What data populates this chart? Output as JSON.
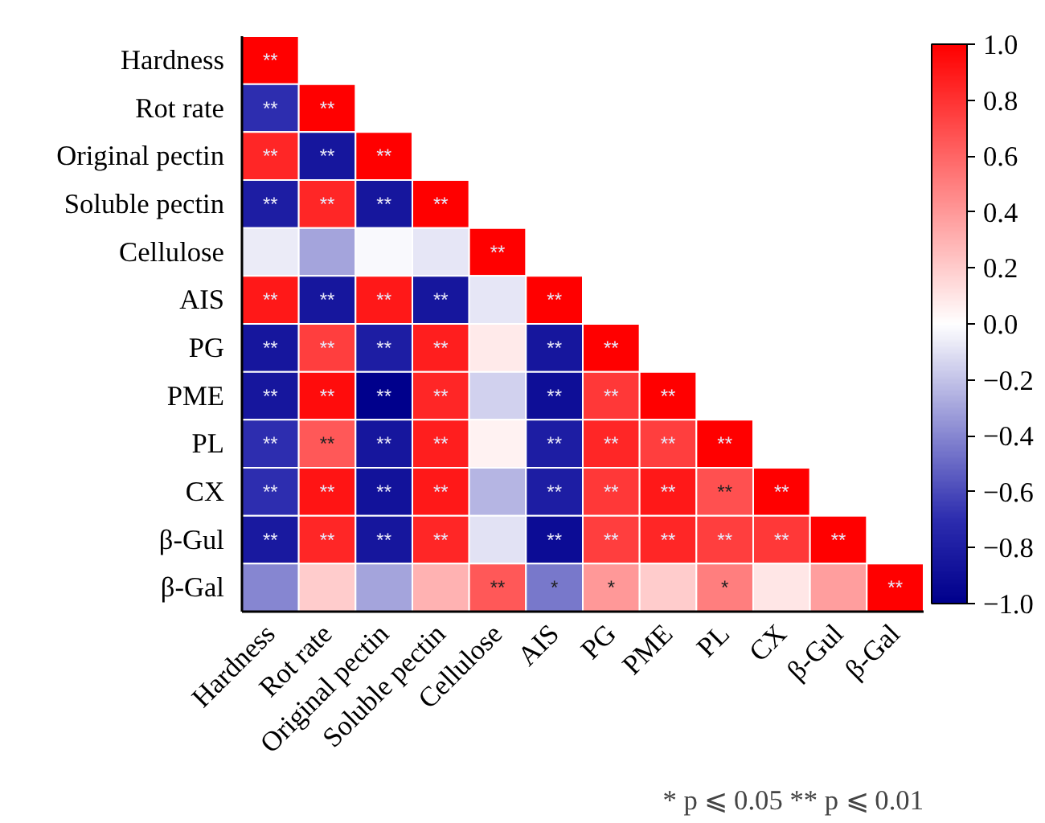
{
  "chart_data": {
    "type": "heatmap",
    "categories": [
      "Hardness",
      "Rot rate",
      "Original pectin",
      "Soluble pectin",
      "Cellulose",
      "AIS",
      "PG",
      "PME",
      "PL",
      "CX",
      "β-Gul",
      "β-Gal"
    ],
    "y_categories": [
      "Hardness",
      "Rot rate",
      "Original pectin",
      "Soluble pectin",
      "Cellulose",
      "AIS",
      "PG",
      "PME",
      "PL",
      "CX",
      "β-Gul",
      "β-Gal"
    ],
    "cells": [
      [
        1,
        null,
        null,
        null,
        null,
        null,
        null,
        null,
        null,
        null,
        null,
        null
      ],
      [
        -0.7,
        1,
        null,
        null,
        null,
        null,
        null,
        null,
        null,
        null,
        null,
        null
      ],
      [
        0.85,
        -0.85,
        1,
        null,
        null,
        null,
        null,
        null,
        null,
        null,
        null,
        null
      ],
      [
        -0.8,
        0.85,
        -0.85,
        1,
        null,
        null,
        null,
        null,
        null,
        null,
        null,
        null
      ],
      [
        -0.07,
        -0.3,
        -0.02,
        -0.08,
        1,
        null,
        null,
        null,
        null,
        null,
        null,
        null
      ],
      [
        0.9,
        -0.85,
        0.9,
        -0.85,
        -0.08,
        1,
        null,
        null,
        null,
        null,
        null,
        null
      ],
      [
        -0.85,
        0.75,
        -0.8,
        0.88,
        0.08,
        -0.85,
        1,
        null,
        null,
        null,
        null,
        null
      ],
      [
        -0.85,
        0.95,
        -1.0,
        0.85,
        -0.15,
        -0.9,
        0.78,
        1,
        null,
        null,
        null,
        null
      ],
      [
        -0.7,
        0.65,
        -0.85,
        0.88,
        0.05,
        -0.8,
        0.85,
        0.75,
        1,
        null,
        null,
        null
      ],
      [
        -0.7,
        0.92,
        -0.88,
        0.9,
        -0.25,
        -0.8,
        0.78,
        0.9,
        0.68,
        1,
        null,
        null
      ],
      [
        -0.83,
        0.85,
        -0.85,
        0.85,
        -0.1,
        -0.92,
        0.75,
        0.85,
        0.75,
        0.78,
        1,
        null
      ],
      [
        -0.4,
        0.2,
        -0.3,
        0.3,
        0.65,
        -0.45,
        0.4,
        0.2,
        0.5,
        0.1,
        0.38,
        1
      ]
    ],
    "cell_labels": [
      [
        "**",
        null,
        null,
        null,
        null,
        null,
        null,
        null,
        null,
        null,
        null,
        null
      ],
      [
        "**",
        "**",
        null,
        null,
        null,
        null,
        null,
        null,
        null,
        null,
        null,
        null
      ],
      [
        "**",
        "**",
        "**",
        null,
        null,
        null,
        null,
        null,
        null,
        null,
        null,
        null
      ],
      [
        "**",
        "**",
        "**",
        "**",
        null,
        null,
        null,
        null,
        null,
        null,
        null,
        null
      ],
      [
        null,
        null,
        null,
        null,
        "**",
        null,
        null,
        null,
        null,
        null,
        null,
        null
      ],
      [
        "**",
        "**",
        "**",
        "**",
        null,
        "**",
        null,
        null,
        null,
        null,
        null,
        null
      ],
      [
        "**",
        "**",
        "**",
        "**",
        null,
        "**",
        "**",
        null,
        null,
        null,
        null,
        null
      ],
      [
        "**",
        "**",
        "**",
        "**",
        null,
        "**",
        "**",
        "**",
        null,
        null,
        null,
        null
      ],
      [
        "**",
        "**",
        "**",
        "**",
        null,
        "**",
        "**",
        "**",
        "**",
        null,
        null,
        null
      ],
      [
        "**",
        "**",
        "**",
        "**",
        null,
        "**",
        "**",
        "**",
        "**",
        "**",
        null,
        null
      ],
      [
        "**",
        "**",
        "**",
        "**",
        null,
        "**",
        "**",
        "**",
        "**",
        "**",
        "**",
        null
      ],
      [
        null,
        null,
        null,
        null,
        "**",
        "*",
        "*",
        null,
        "*",
        null,
        null,
        "**"
      ]
    ],
    "clim": [
      -1.0,
      1.0
    ],
    "cticks": [
      {
        "value": -1.0,
        "label": "−1.0"
      },
      {
        "value": -0.8,
        "label": "−0.8"
      },
      {
        "value": -0.6,
        "label": "−0.6"
      },
      {
        "value": -0.4,
        "label": "−0.4"
      },
      {
        "value": -0.2,
        "label": "−0.2"
      },
      {
        "value": 0.0,
        "label": "0.0"
      },
      {
        "value": 0.2,
        "label": "0.2"
      },
      {
        "value": 0.4,
        "label": "0.4"
      },
      {
        "value": 0.6,
        "label": "0.6"
      },
      {
        "value": 0.8,
        "label": "0.8"
      },
      {
        "value": 1.0,
        "label": "1.0"
      }
    ],
    "annotations": [
      "* p ⩽ 0.05 ** p ⩽ 0.01"
    ]
  }
}
